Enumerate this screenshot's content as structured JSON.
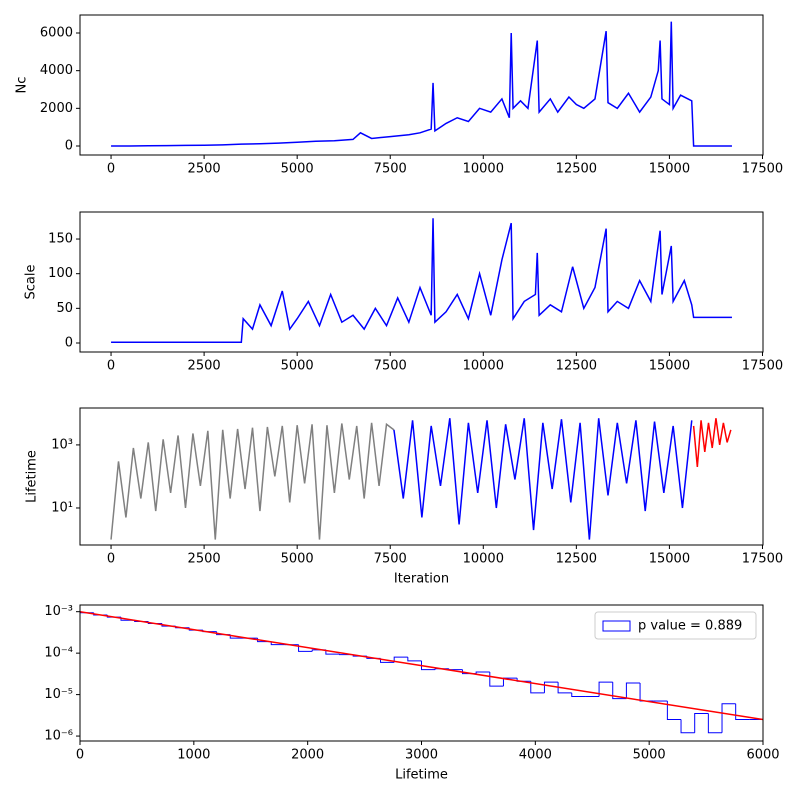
{
  "chart_data": [
    {
      "type": "line",
      "ylabel": "Nc",
      "xlim": [
        -834,
        17514
      ],
      "xticks": [
        0,
        2500,
        5000,
        7500,
        10000,
        12500,
        15000,
        17500
      ],
      "ylim": [
        -478,
        6956
      ],
      "yticks": [
        0,
        2000,
        4000,
        6000
      ],
      "series": [
        {
          "color": "#0000ff",
          "x": [
            0,
            500,
            1000,
            1500,
            2000,
            2500,
            3000,
            3500,
            4000,
            4500,
            5000,
            5500,
            6000,
            6500,
            6700,
            7000,
            7500,
            8000,
            8300,
            8600,
            8650,
            8700,
            9000,
            9300,
            9600,
            9900,
            10200,
            10500,
            10700,
            10750,
            10800,
            11000,
            11200,
            11450,
            11500,
            11800,
            12000,
            12300,
            12500,
            12700,
            13000,
            13300,
            13350,
            13600,
            13900,
            14200,
            14500,
            14700,
            14750,
            14800,
            15000,
            15050,
            15100,
            15300,
            15600,
            15650,
            16680
          ],
          "values": [
            0,
            0,
            10,
            20,
            30,
            40,
            60,
            100,
            120,
            150,
            200,
            250,
            280,
            350,
            700,
            400,
            500,
            600,
            700,
            900,
            3350,
            800,
            1200,
            1500,
            1300,
            2000,
            1800,
            2500,
            1500,
            6000,
            2000,
            2400,
            2000,
            5600,
            1800,
            2500,
            1800,
            2600,
            2200,
            2000,
            2500,
            6100,
            2300,
            2000,
            2800,
            1800,
            2600,
            4000,
            5600,
            2500,
            2200,
            6600,
            2000,
            2700,
            2400,
            0,
            0
          ]
        }
      ]
    },
    {
      "type": "line",
      "ylabel": "Scale",
      "xlim": [
        -834,
        17514
      ],
      "xticks": [
        0,
        2500,
        5000,
        7500,
        10000,
        12500,
        15000,
        17500
      ],
      "ylim": [
        -13,
        189
      ],
      "yticks": [
        0,
        50,
        100,
        150
      ],
      "series": [
        {
          "color": "#0000ff",
          "x": [
            0,
            3500,
            3550,
            3800,
            4000,
            4300,
            4600,
            4800,
            5000,
            5300,
            5600,
            5900,
            6200,
            6500,
            6800,
            7100,
            7400,
            7700,
            8000,
            8300,
            8600,
            8650,
            8700,
            9000,
            9300,
            9600,
            9900,
            10200,
            10500,
            10750,
            10800,
            11100,
            11400,
            11450,
            11500,
            11800,
            12100,
            12400,
            12700,
            13000,
            13300,
            13350,
            13600,
            13900,
            14200,
            14500,
            14750,
            14800,
            15050,
            15100,
            15400,
            15600,
            15650,
            16680
          ],
          "values": [
            1,
            1,
            35,
            20,
            55,
            25,
            75,
            20,
            35,
            60,
            25,
            70,
            30,
            40,
            20,
            50,
            25,
            65,
            30,
            80,
            40,
            180,
            30,
            45,
            70,
            35,
            100,
            40,
            120,
            173,
            35,
            60,
            70,
            130,
            40,
            55,
            45,
            110,
            50,
            80,
            165,
            45,
            60,
            50,
            90,
            60,
            162,
            70,
            140,
            60,
            90,
            55,
            37,
            37
          ]
        }
      ]
    },
    {
      "type": "line",
      "ylabel": "Lifetime",
      "xlabel": "Iteration",
      "ylog": true,
      "xlim": [
        -834,
        17514
      ],
      "xticks": [
        0,
        2500,
        5000,
        7500,
        10000,
        12500,
        15000,
        17500
      ],
      "ylim": [
        0.67,
        14800
      ],
      "yticks": [
        {
          "value": 10,
          "label": "10¹"
        },
        {
          "value": 1000,
          "label": "10³"
        }
      ],
      "series": [
        {
          "color": "#808080",
          "x": [
            0,
            200,
            400,
            600,
            800,
            1000,
            1200,
            1400,
            1600,
            1800,
            2000,
            2200,
            2400,
            2600,
            2800,
            3000,
            3200,
            3400,
            3600,
            3800,
            4000,
            4200,
            4400,
            4600,
            4800,
            5000,
            5200,
            5400,
            5600,
            5800,
            6000,
            6200,
            6400,
            6600,
            6800,
            7000,
            7200,
            7400,
            7600
          ],
          "values": [
            1,
            300,
            5,
            800,
            20,
            1200,
            8,
            1500,
            30,
            2000,
            10,
            2300,
            50,
            2800,
            1,
            3000,
            20,
            3200,
            40,
            3500,
            8,
            3700,
            100,
            4000,
            15,
            4200,
            60,
            4500,
            1,
            4200,
            30,
            4800,
            80,
            4000,
            20,
            5000,
            50,
            4500,
            3000
          ]
        },
        {
          "color": "#0000ff",
          "x": [
            7600,
            7850,
            8100,
            8350,
            8600,
            8850,
            9100,
            9350,
            9600,
            9850,
            10100,
            10350,
            10600,
            10850,
            11100,
            11350,
            11600,
            11850,
            12100,
            12350,
            12600,
            12850,
            13100,
            13350,
            13600,
            13850,
            14100,
            14350,
            14600,
            14850,
            15100,
            15350,
            15600
          ],
          "values": [
            3000,
            20,
            6000,
            5,
            4000,
            50,
            7000,
            3,
            5000,
            30,
            6000,
            10,
            4500,
            80,
            7000,
            2,
            5000,
            40,
            6500,
            15,
            5000,
            1,
            7000,
            25,
            5000,
            60,
            6000,
            8,
            5500,
            30,
            4000,
            10,
            6000
          ]
        },
        {
          "color": "#ff0000",
          "x": [
            15650,
            15750,
            15850,
            15950,
            16050,
            16150,
            16250,
            16350,
            16450,
            16550,
            16650
          ],
          "values": [
            4000,
            200,
            6000,
            600,
            5000,
            800,
            7000,
            1000,
            5000,
            1200,
            3000
          ]
        }
      ]
    },
    {
      "type": "histogram",
      "xlabel": "Lifetime",
      "ylog": true,
      "xlim": [
        0,
        6000
      ],
      "xticks": [
        0,
        1000,
        2000,
        3000,
        4000,
        5000,
        6000
      ],
      "ylim": [
        7.6e-07,
        0.00145
      ],
      "yticks": [
        {
          "value": 1e-06,
          "label": "10⁻⁶"
        },
        {
          "value": 1e-05,
          "label": "10⁻⁵"
        },
        {
          "value": 0.0001,
          "label": "10⁻⁴"
        },
        {
          "value": 0.001,
          "label": "10⁻³"
        }
      ],
      "legend": "upper right",
      "bins": [
        0,
        120,
        240,
        360,
        480,
        600,
        720,
        840,
        960,
        1080,
        1200,
        1320,
        1440,
        1560,
        1680,
        1800,
        1920,
        2040,
        2160,
        2280,
        2400,
        2520,
        2640,
        2760,
        2880,
        3000,
        3120,
        3240,
        3360,
        3480,
        3600,
        3720,
        3840,
        3960,
        4080,
        4200,
        4320,
        4440,
        4560,
        4680,
        4800,
        4920,
        5040,
        5160,
        5280,
        5400,
        5520,
        5640,
        5760,
        5880,
        6000
      ],
      "series": [
        {
          "name": "p value = 0.889",
          "color": "#0000ff",
          "values": [
            0.00094,
            0.00083,
            0.00074,
            0.00062,
            0.00058,
            0.00052,
            0.00045,
            0.00041,
            0.00036,
            0.00033,
            0.00028,
            0.00023,
            0.00023,
            0.00019,
            0.00016,
            0.00016,
            0.00011,
            0.00012,
            9.5e-05,
            9.2e-05,
            8.5e-05,
            7.5e-05,
            6e-05,
            8e-05,
            6.5e-05,
            4e-05,
            4.2e-05,
            4e-05,
            3.2e-05,
            3.5e-05,
            1.6e-05,
            2.5e-05,
            2.1e-05,
            1.1e-05,
            2e-05,
            1.1e-05,
            9e-06,
            9e-06,
            2e-05,
            8e-06,
            1.9e-05,
            7e-06,
            7e-06,
            2.5e-06,
            1.2e-06,
            3.5e-06,
            1.2e-06,
            6e-06,
            2.5e-06,
            2.5e-06
          ]
        }
      ],
      "fit": {
        "color": "#ff0000",
        "x": [
          0,
          6000
        ],
        "values": [
          0.001,
          2.5e-06
        ]
      }
    }
  ]
}
